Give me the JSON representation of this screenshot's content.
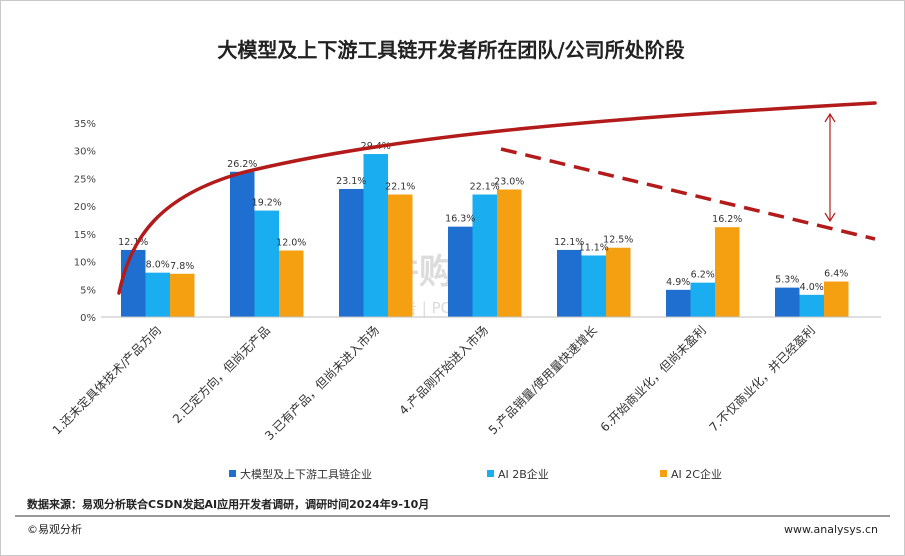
{
  "chart_data": {
    "type": "bar",
    "title": "大模型及上下游工具链开发者所在团队/公司所处阶段",
    "xlabel": "",
    "ylabel": "",
    "ylim": [
      0,
      35
    ],
    "yticks": [
      "0%",
      "5%",
      "10%",
      "15%",
      "20%",
      "25%",
      "30%",
      "35%"
    ],
    "grid": false,
    "legend": "bottom",
    "categories": [
      "1.还未定具体技术/产品方向",
      "2.已定方向，但尚无产品",
      "3.已有产品，但尚未进入市场",
      "4.产品刚开始进入市场",
      "5.产品销量/使用量快速增长",
      "6.开始商业化，但尚未盈利",
      "7.不仅商业化，并已经盈利"
    ],
    "series": [
      {
        "name": "大模型及上下游工具链企业",
        "color": "#1f6fd1",
        "values": [
          12.1,
          26.2,
          23.1,
          16.3,
          12.1,
          4.9,
          5.3
        ],
        "labels": [
          "12.1%",
          "26.2%",
          "23.1%",
          "16.3%",
          "12.1%",
          "4.9%",
          "5.3%"
        ]
      },
      {
        "name": "AI 2B企业",
        "color": "#1aaef0",
        "values": [
          8.0,
          19.2,
          29.4,
          22.1,
          11.1,
          6.2,
          4.0
        ],
        "labels": [
          "8.0%",
          "19.2%",
          "29.4%",
          "22.1%",
          "11.1%",
          "6.2%",
          "4.0%"
        ]
      },
      {
        "name": "AI 2C企业",
        "color": "#f5a010",
        "values": [
          7.8,
          12.0,
          22.1,
          23.0,
          12.5,
          16.2,
          6.4
        ],
        "labels": [
          "7.8%",
          "12.0%",
          "22.1%",
          "23.0%",
          "12.5%",
          "16.2%",
          "6.4%"
        ]
      }
    ],
    "annotation_color": "#b31b1b"
  },
  "source": "数据来源：易观分析联合CSDN发起AI应用开发者调研，调研时间2024年9-10月",
  "footer": {
    "left": "©易观分析",
    "right": "www.analysys.cn"
  },
  "watermark": {
    "main": "并购家",
    "sub": "行业报告 | POIPO.CN"
  }
}
